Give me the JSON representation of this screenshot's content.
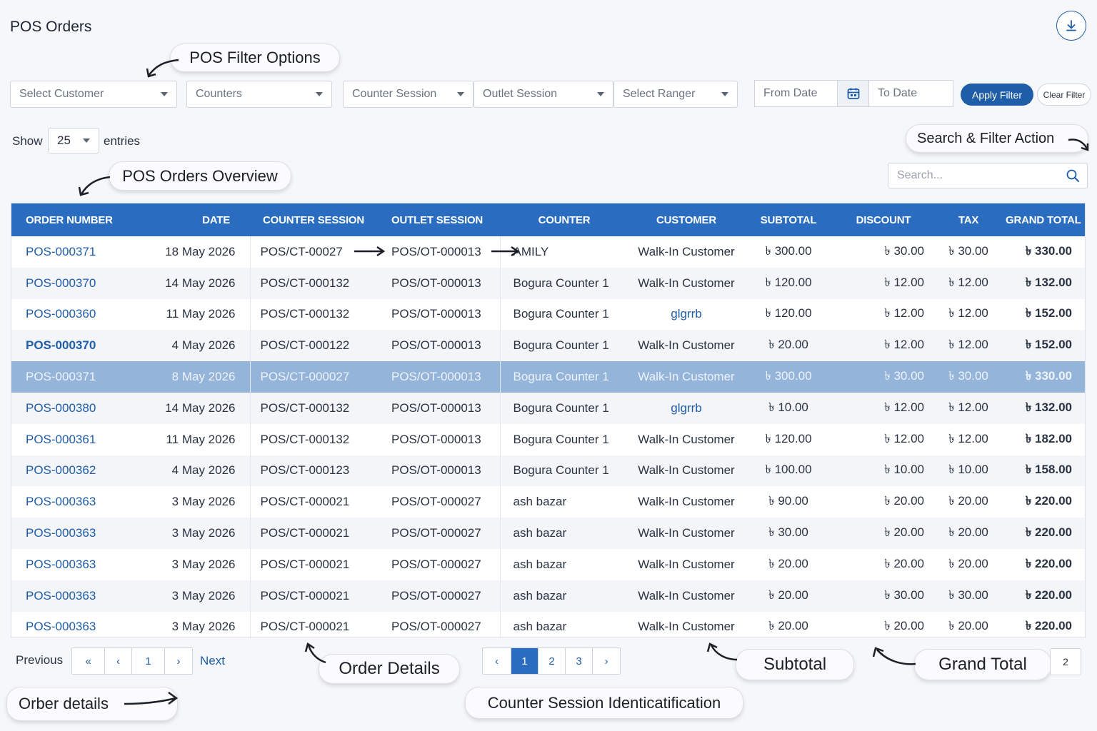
{
  "page_title": "POS Orders",
  "icons": {
    "download": "download-icon",
    "calendar": "calendar-icon",
    "search": "search-icon"
  },
  "filters": {
    "customer": "Select Customer",
    "counters": "Counters",
    "counter_session": "Counter Session",
    "outlet_session": "Outlet Session",
    "ranger": "Select Ranger",
    "from_date": "From Date",
    "to_date": "To Date",
    "apply": "Apply Filter",
    "clear": "Clear Filter"
  },
  "entries": {
    "show": "Show",
    "value": "25",
    "suffix": "entries"
  },
  "search": {
    "placeholder": "Search..."
  },
  "annotations": {
    "filter_options": "POS Filter Options",
    "search_filter_action": "Search & Filter Action",
    "orders_overview": "POS Orders Overview",
    "order_details": "Order Details",
    "orber_details": "Orber details",
    "subtotal": "Subtotal",
    "grand_total": "Grand Total",
    "counter_session_id": "Counter Session Identicatification"
  },
  "table": {
    "headers": {
      "order_number": "ORDER NUMBER",
      "date": "DATE",
      "counter_session": "COUNTER SESSION",
      "outlet_session": "OUTLET SESSION",
      "counter": "COUNTER",
      "customer": "CUSTOMER",
      "subtotal": "SUBTOTAL",
      "discount": "DISCOUNT",
      "tax": "TAX",
      "grand_total": "GRAND TOTAL"
    },
    "rows": [
      {
        "order": "POS-000371",
        "date": "18 May 2026",
        "cs": "POS/CT-00027",
        "os": "POS/OT-000013",
        "counter": "AMILY",
        "customer": "Walk-In Customer",
        "subtotal": "৳ 300.00",
        "discount": "৳ 30.00",
        "tax": "৳ 30.00",
        "grand": "৳ 330.00"
      },
      {
        "order": "POS-000370",
        "date": "14 May 2026",
        "cs": "POS/CT-000132",
        "os": "POS/OT-000013",
        "counter": "Bogura Counter 1",
        "customer": "Walk-In Customer",
        "subtotal": "৳ 120.00",
        "discount": "৳ 12.00",
        "tax": "৳ 12.00",
        "grand": "৳ 132.00"
      },
      {
        "order": "POS-000360",
        "date": "11 May 2026",
        "cs": "POS/CT-000132",
        "os": "POS/OT-000013",
        "counter": "Bogura Counter 1",
        "customer": "glgrrb",
        "subtotal": "৳ 120.00",
        "discount": "৳ 12.00",
        "tax": "৳ 12.00",
        "grand": "৳ 152.00"
      },
      {
        "order": "POS-000370",
        "date": "4 May 2026",
        "cs": "POS/CT-000122",
        "os": "POS/OT-000013",
        "counter": "Bogura Counter 1",
        "customer": "Walk-In Customer",
        "subtotal": "৳ 20.00",
        "discount": "৳ 12.00",
        "tax": "৳ 12.00",
        "grand": "৳ 152.00"
      },
      {
        "order": "POS-000371",
        "date": "8 May 2026",
        "cs": "POS/CT-000027",
        "os": "POS/OT-000013",
        "counter": "Bogura Counter 1",
        "customer": "Walk-In Customer",
        "subtotal": "৳ 300.00",
        "discount": "৳ 30.00",
        "tax": "৳ 30.00",
        "grand": "৳ 330.00"
      },
      {
        "order": "POS-000380",
        "date": "14 May 2026",
        "cs": "POS/CT-000132",
        "os": "POS/OT-000013",
        "counter": "Bogura Counter 1",
        "customer": "glgrrb",
        "subtotal": "৳ 10.00",
        "discount": "৳ 12.00",
        "tax": "৳ 12.00",
        "grand": "৳ 132.00"
      },
      {
        "order": "POS-000361",
        "date": "11 May 2026",
        "cs": "POS/CT-000132",
        "os": "POS/OT-000013",
        "counter": "Bogura Counter 1",
        "customer": "Walk-In Customer",
        "subtotal": "৳ 120.00",
        "discount": "৳ 12.00",
        "tax": "৳ 12.00",
        "grand": "৳ 182.00"
      },
      {
        "order": "POS-000362",
        "date": "4 May 2026",
        "cs": "POS/CT-000123",
        "os": "POS/OT-000013",
        "counter": "Bogura Counter 1",
        "customer": "Walk-In Customer",
        "subtotal": "৳ 100.00",
        "discount": "৳ 10.00",
        "tax": "৳ 10.00",
        "grand": "৳ 158.00"
      },
      {
        "order": "POS-000363",
        "date": "3 May 2026",
        "cs": "POS/CT-000021",
        "os": "POS/OT-000027",
        "counter": "ash bazar",
        "customer": "Walk-In Customer",
        "subtotal": "৳ 90.00",
        "discount": "৳ 20.00",
        "tax": "৳ 20.00",
        "grand": "৳ 220.00"
      },
      {
        "order": "POS-000363",
        "date": "3 May 2026",
        "cs": "POS/CT-000021",
        "os": "POS/OT-000027",
        "counter": "ash bazar",
        "customer": "Walk-In Customer",
        "subtotal": "৳ 30.00",
        "discount": "৳ 20.00",
        "tax": "৳ 20.00",
        "grand": "৳ 220.00"
      },
      {
        "order": "POS-000363",
        "date": "3 May 2026",
        "cs": "POS/CT-000021",
        "os": "POS/OT-000027",
        "counter": "ash bazar",
        "customer": "Walk-In Customer",
        "subtotal": "৳ 20.00",
        "discount": "৳ 20.00",
        "tax": "৳ 20.00",
        "grand": "৳ 220.00"
      },
      {
        "order": "POS-000363",
        "date": "3 May 2026",
        "cs": "POS/CT-000021",
        "os": "POS/OT-000027",
        "counter": "ash bazar",
        "customer": "Walk-In Customer",
        "subtotal": "৳ 20.00",
        "discount": "৳ 30.00",
        "tax": "৳ 30.00",
        "grand": "৳ 220.00"
      },
      {
        "order": "POS-000363",
        "date": "3 May 2026",
        "cs": "POS/CT-000021",
        "os": "POS/OT-000027",
        "counter": "ash bazar",
        "customer": "Walk-In Customer",
        "subtotal": "৳ 20.00",
        "discount": "৳ 20.00",
        "tax": "৳ 20.00",
        "grand": "৳ 220.00"
      }
    ]
  },
  "pagination": {
    "previous": "Previous",
    "next": "Next",
    "first": "«",
    "prev_arrow": "‹",
    "current": "1",
    "next_arrow": "›",
    "pages": [
      "1",
      "2",
      "3"
    ],
    "page2_box": "2"
  },
  "colors": {
    "primary": "#2a6cc0",
    "link": "#1f5da8",
    "selected_row": "#95b4da"
  }
}
